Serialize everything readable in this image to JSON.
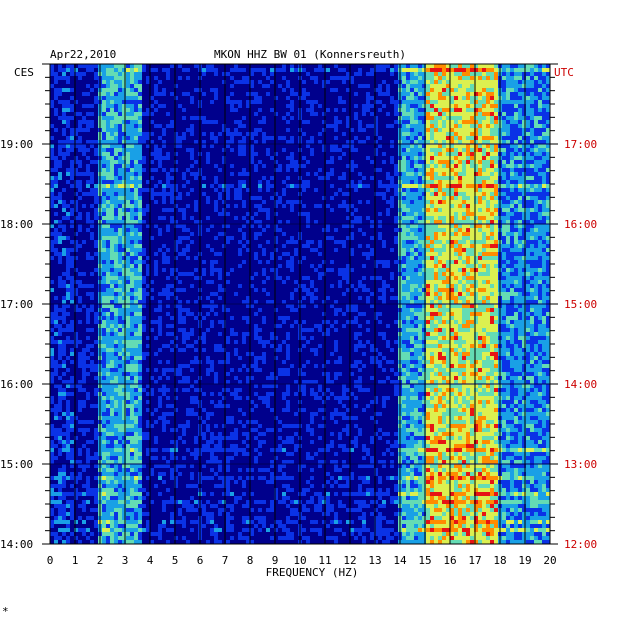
{
  "header": {
    "date": "Apr22,2010",
    "station": "MKON HHZ BW 01 (Konnersreuth)"
  },
  "footer_mark": "*",
  "chart_data": {
    "type": "heatmap",
    "title": "MKON HHZ BW 01 (Konnersreuth)",
    "date": "Apr22,2010",
    "xlabel": "FREQUENCY (HZ)",
    "xlim": [
      0,
      20
    ],
    "x_ticks": [
      "0",
      "1",
      "2",
      "3",
      "4",
      "5",
      "6",
      "7",
      "8",
      "9",
      "10",
      "11",
      "12",
      "13",
      "14",
      "15",
      "16",
      "17",
      "18",
      "19",
      "20"
    ],
    "left_axis": {
      "label": "CES",
      "ylim_hours": [
        14,
        20
      ],
      "ticks": [
        "14:00",
        "15:00",
        "16:00",
        "17:00",
        "18:00",
        "19:00"
      ]
    },
    "right_axis": {
      "label": "UTC",
      "ylim_hours": [
        12,
        18
      ],
      "ticks": [
        "12:00",
        "13:00",
        "14:00",
        "15:00",
        "16:00",
        "17:00"
      ]
    },
    "colormap": [
      "#0000a0",
      "#0a32e6",
      "#19a0e6",
      "#64dcb4",
      "#dcf050",
      "#ff8c00",
      "#e61414"
    ],
    "energy_bands": [
      {
        "from_hz": 0,
        "to_hz": 1,
        "level": 0.16
      },
      {
        "from_hz": 1,
        "to_hz": 2,
        "level": 0.12
      },
      {
        "from_hz": 2,
        "to_hz": 3.6,
        "level": 0.38
      },
      {
        "from_hz": 3.6,
        "to_hz": 13.8,
        "level": 0.08
      },
      {
        "from_hz": 14,
        "to_hz": 15,
        "level": 0.38
      },
      {
        "from_hz": 15,
        "to_hz": 18,
        "level": 0.62
      },
      {
        "from_hz": 18,
        "to_hz": 20,
        "level": 0.32
      }
    ]
  }
}
